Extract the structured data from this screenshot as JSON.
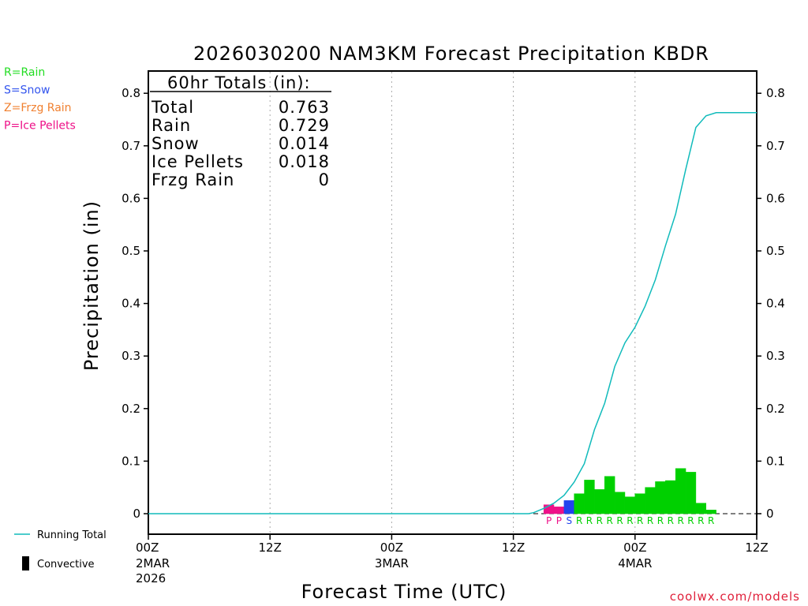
{
  "chart_data": {
    "type": "bar",
    "title": "2026030200 NAM3KM Forecast Precipitation KBDR",
    "xlabel": "Forecast Time (UTC)",
    "ylabel": "Precipitation (in)",
    "ylim": [
      0,
      0.84
    ],
    "xlim_hours": [
      0,
      60
    ],
    "y_ticks": [
      "0",
      "0.1",
      "0.2",
      "0.3",
      "0.4",
      "0.5",
      "0.6",
      "0.7",
      "0.8"
    ],
    "x_ticks": [
      {
        "hour": 0,
        "time": "00Z",
        "date": "2MAR",
        "year": "2026"
      },
      {
        "hour": 12,
        "time": "12Z",
        "date": "",
        "year": ""
      },
      {
        "hour": 24,
        "time": "00Z",
        "date": "3MAR",
        "year": ""
      },
      {
        "hour": 36,
        "time": "12Z",
        "date": "",
        "year": ""
      },
      {
        "hour": 48,
        "time": "00Z",
        "date": "4MAR",
        "year": ""
      },
      {
        "hour": 60,
        "time": "12Z",
        "date": "",
        "year": ""
      }
    ],
    "hourly_precip": {
      "start_hour": 39,
      "values": [
        0.017,
        0.013,
        0.025,
        0.038,
        0.064,
        0.046,
        0.071,
        0.041,
        0.032,
        0.038,
        0.05,
        0.061,
        0.063,
        0.086,
        0.079,
        0.02,
        0.007
      ],
      "types": [
        "P",
        "P",
        "S",
        "R",
        "R",
        "R",
        "R",
        "R",
        "R",
        "R",
        "R",
        "R",
        "R",
        "R",
        "R",
        "R",
        "R"
      ]
    },
    "running_total": [
      [
        0,
        0
      ],
      [
        37.5,
        0
      ],
      [
        38,
        0.002
      ],
      [
        39,
        0.01
      ],
      [
        40,
        0.02
      ],
      [
        41,
        0.035
      ],
      [
        42,
        0.06
      ],
      [
        43,
        0.095
      ],
      [
        44,
        0.16
      ],
      [
        45,
        0.21
      ],
      [
        46,
        0.28
      ],
      [
        47,
        0.325
      ],
      [
        48,
        0.355
      ],
      [
        49,
        0.395
      ],
      [
        50,
        0.445
      ],
      [
        51,
        0.51
      ],
      [
        52,
        0.57
      ],
      [
        53,
        0.655
      ],
      [
        54,
        0.735
      ],
      [
        55,
        0.757
      ],
      [
        56,
        0.763
      ],
      [
        60,
        0.763
      ]
    ],
    "type_colors": {
      "R": "#00d000",
      "S": "#2244ee",
      "P": "#ee1188",
      "Z": "#f08030"
    },
    "running_total_color": "#11bbbb"
  },
  "type_legend": [
    {
      "label": "R=Rain",
      "color": "#22dd22"
    },
    {
      "label": "S=Snow",
      "color": "#3355ee"
    },
    {
      "label": "Z=Frzg Rain",
      "color": "#f08030"
    },
    {
      "label": "P=Ice Pellets",
      "color": "#ee1188"
    }
  ],
  "totals_box": {
    "header": "60hr Totals (in):",
    "rows": [
      {
        "label": "Total",
        "value": "0.763"
      },
      {
        "label": "Rain",
        "value": "0.729"
      },
      {
        "label": "Snow",
        "value": "0.014"
      },
      {
        "label": "Ice Pellets",
        "value": "0.018"
      },
      {
        "label": "Frzg Rain",
        "value": "0"
      }
    ]
  },
  "bottom_legend": {
    "running_total_label": "Running Total",
    "convective_label": "Convective"
  },
  "credit": "coolwx.com/models"
}
